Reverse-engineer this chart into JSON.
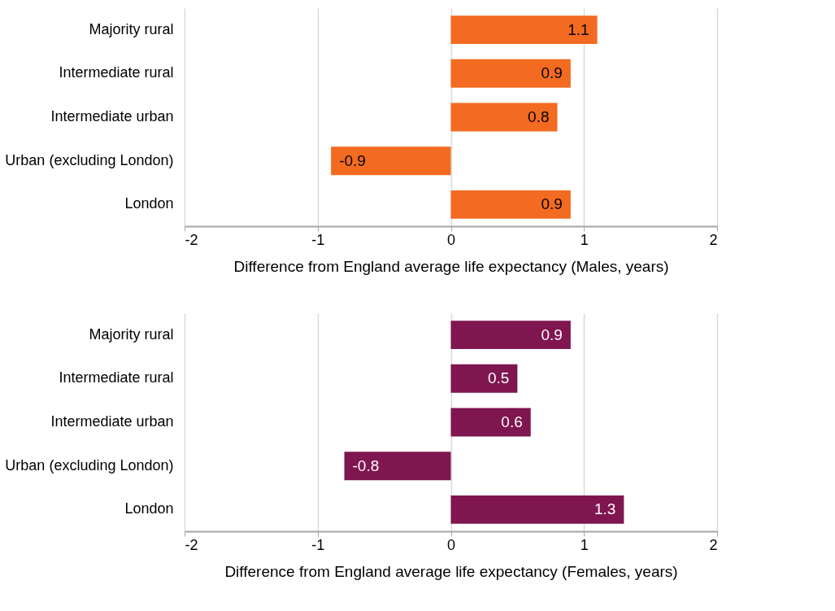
{
  "chart_data": [
    {
      "type": "bar",
      "orientation": "horizontal",
      "categories": [
        "Majority rural",
        "Intermediate rural",
        "Intermediate urban",
        "Urban (excluding London)",
        "London"
      ],
      "values": [
        1.1,
        0.9,
        0.8,
        -0.9,
        0.9
      ],
      "color": "#f26b21",
      "xlim": [
        -2,
        2
      ],
      "xticks": [
        -2,
        -1,
        0,
        1,
        2
      ],
      "xlabel": "Difference from England average life expectancy  (Males, years)",
      "grid": "x",
      "data_labels": true
    },
    {
      "type": "bar",
      "orientation": "horizontal",
      "categories": [
        "Majority rural",
        "Intermediate rural",
        "Intermediate urban",
        "Urban (excluding London)",
        "London"
      ],
      "values": [
        0.9,
        0.5,
        0.6,
        -0.8,
        1.3
      ],
      "color": "#7f1650",
      "xlim": [
        -2,
        2
      ],
      "xticks": [
        -2,
        -1,
        0,
        1,
        2
      ],
      "xlabel": "Difference from England average life expectancy  (Females, years)",
      "grid": "x",
      "data_labels": true
    }
  ]
}
